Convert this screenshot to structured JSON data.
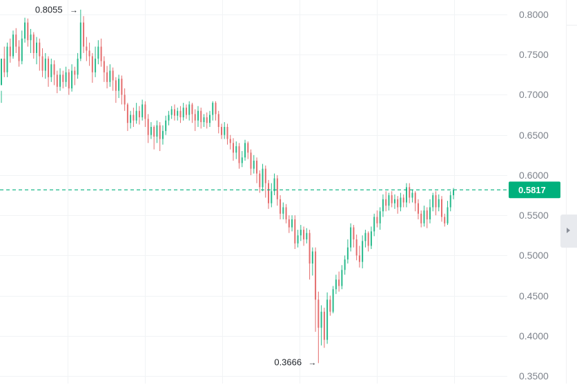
{
  "chart_data": {
    "type": "candlestick",
    "y_axis": {
      "ticks": [
        "0.8000",
        "0.7500",
        "0.7000",
        "0.6500",
        "0.6000",
        "0.5500",
        "0.5000",
        "0.4500",
        "0.4000",
        "0.3500"
      ],
      "ylim": [
        0.35,
        0.8
      ]
    },
    "grid": true,
    "current_price": {
      "value": 0.5817,
      "label": "0.5817",
      "color": "#00b07c"
    },
    "high_marker": {
      "value": 0.8055,
      "label": "0.8055"
    },
    "low_marker": {
      "value": 0.3666,
      "label": "0.3666"
    },
    "colors": {
      "up": "#26b98a",
      "down": "#e46c6c",
      "axis_text": "#7d828b",
      "grid": "#f1f3f5"
    },
    "candles": [
      [
        0.712,
        0.745,
        0.705,
        0.69
      ],
      [
        0.745,
        0.728,
        0.76,
        0.722
      ],
      [
        0.728,
        0.76,
        0.765,
        0.722
      ],
      [
        0.76,
        0.748,
        0.77,
        0.74
      ],
      [
        0.748,
        0.775,
        0.78,
        0.745
      ],
      [
        0.775,
        0.76,
        0.783,
        0.752
      ],
      [
        0.76,
        0.742,
        0.768,
        0.735
      ],
      [
        0.742,
        0.77,
        0.78,
        0.738
      ],
      [
        0.77,
        0.79,
        0.796,
        0.765
      ],
      [
        0.79,
        0.768,
        0.795,
        0.76
      ],
      [
        0.768,
        0.775,
        0.782,
        0.752
      ],
      [
        0.775,
        0.752,
        0.778,
        0.745
      ],
      [
        0.752,
        0.765,
        0.772,
        0.738
      ],
      [
        0.765,
        0.748,
        0.77,
        0.73
      ],
      [
        0.748,
        0.73,
        0.758,
        0.722
      ],
      [
        0.73,
        0.745,
        0.752,
        0.72
      ],
      [
        0.745,
        0.722,
        0.748,
        0.71
      ],
      [
        0.722,
        0.738,
        0.745,
        0.716
      ],
      [
        0.738,
        0.725,
        0.743,
        0.712
      ],
      [
        0.725,
        0.71,
        0.73,
        0.702
      ],
      [
        0.71,
        0.725,
        0.733,
        0.705
      ],
      [
        0.725,
        0.716,
        0.73,
        0.708
      ],
      [
        0.716,
        0.728,
        0.735,
        0.71
      ],
      [
        0.728,
        0.708,
        0.732,
        0.7
      ],
      [
        0.708,
        0.73,
        0.738,
        0.704
      ],
      [
        0.73,
        0.725,
        0.735,
        0.712
      ],
      [
        0.725,
        0.745,
        0.752,
        0.72
      ],
      [
        0.745,
        0.79,
        0.806,
        0.742
      ],
      [
        0.79,
        0.76,
        0.798,
        0.752
      ],
      [
        0.76,
        0.755,
        0.772,
        0.742
      ],
      [
        0.755,
        0.748,
        0.765,
        0.736
      ],
      [
        0.748,
        0.728,
        0.752,
        0.715
      ],
      [
        0.728,
        0.745,
        0.76,
        0.722
      ],
      [
        0.745,
        0.76,
        0.768,
        0.738
      ],
      [
        0.76,
        0.742,
        0.77,
        0.735
      ],
      [
        0.742,
        0.728,
        0.748,
        0.716
      ],
      [
        0.728,
        0.716,
        0.736,
        0.708
      ],
      [
        0.716,
        0.73,
        0.738,
        0.71
      ],
      [
        0.73,
        0.718,
        0.734,
        0.705
      ],
      [
        0.718,
        0.705,
        0.722,
        0.69
      ],
      [
        0.705,
        0.72,
        0.725,
        0.696
      ],
      [
        0.72,
        0.7,
        0.724,
        0.688
      ],
      [
        0.7,
        0.688,
        0.708,
        0.68
      ],
      [
        0.688,
        0.665,
        0.69,
        0.655
      ],
      [
        0.665,
        0.675,
        0.68,
        0.658
      ],
      [
        0.675,
        0.668,
        0.684,
        0.66
      ],
      [
        0.668,
        0.68,
        0.69,
        0.664
      ],
      [
        0.68,
        0.672,
        0.686,
        0.663
      ],
      [
        0.672,
        0.688,
        0.694,
        0.668
      ],
      [
        0.688,
        0.67,
        0.692,
        0.66
      ],
      [
        0.67,
        0.65,
        0.676,
        0.64
      ],
      [
        0.65,
        0.66,
        0.666,
        0.645
      ],
      [
        0.66,
        0.648,
        0.662,
        0.632
      ],
      [
        0.648,
        0.662,
        0.668,
        0.64
      ],
      [
        0.662,
        0.645,
        0.666,
        0.63
      ],
      [
        0.645,
        0.655,
        0.662,
        0.638
      ],
      [
        0.655,
        0.668,
        0.674,
        0.65
      ],
      [
        0.668,
        0.675,
        0.68,
        0.662
      ],
      [
        0.675,
        0.682,
        0.686,
        0.67
      ],
      [
        0.682,
        0.674,
        0.688,
        0.668
      ],
      [
        0.674,
        0.68,
        0.684,
        0.668
      ],
      [
        0.68,
        0.672,
        0.686,
        0.665
      ],
      [
        0.672,
        0.684,
        0.69,
        0.668
      ],
      [
        0.684,
        0.675,
        0.688,
        0.67
      ],
      [
        0.675,
        0.688,
        0.692,
        0.668
      ],
      [
        0.688,
        0.676,
        0.69,
        0.665
      ],
      [
        0.676,
        0.668,
        0.682,
        0.655
      ],
      [
        0.668,
        0.68,
        0.686,
        0.66
      ],
      [
        0.68,
        0.666,
        0.684,
        0.658
      ],
      [
        0.666,
        0.672,
        0.676,
        0.66
      ],
      [
        0.672,
        0.665,
        0.678,
        0.658
      ],
      [
        0.665,
        0.675,
        0.68,
        0.66
      ],
      [
        0.675,
        0.69,
        0.692,
        0.668
      ],
      [
        0.69,
        0.676,
        0.692,
        0.668
      ],
      [
        0.676,
        0.66,
        0.68,
        0.652
      ],
      [
        0.66,
        0.65,
        0.664,
        0.645
      ],
      [
        0.65,
        0.66,
        0.666,
        0.645
      ],
      [
        0.66,
        0.645,
        0.664,
        0.638
      ],
      [
        0.645,
        0.64,
        0.65,
        0.632
      ],
      [
        0.64,
        0.628,
        0.646,
        0.618
      ],
      [
        0.628,
        0.636,
        0.642,
        0.62
      ],
      [
        0.636,
        0.615,
        0.64,
        0.608
      ],
      [
        0.615,
        0.622,
        0.63,
        0.61
      ],
      [
        0.622,
        0.64,
        0.644,
        0.618
      ],
      [
        0.64,
        0.628,
        0.642,
        0.62
      ],
      [
        0.628,
        0.608,
        0.632,
        0.6
      ],
      [
        0.608,
        0.618,
        0.625,
        0.602
      ],
      [
        0.618,
        0.602,
        0.622,
        0.59
      ],
      [
        0.602,
        0.585,
        0.606,
        0.578
      ],
      [
        0.585,
        0.608,
        0.614,
        0.58
      ],
      [
        0.608,
        0.59,
        0.612,
        0.572
      ],
      [
        0.59,
        0.565,
        0.594,
        0.558
      ],
      [
        0.565,
        0.58,
        0.59,
        0.56
      ],
      [
        0.58,
        0.596,
        0.602,
        0.575
      ],
      [
        0.596,
        0.57,
        0.6,
        0.562
      ],
      [
        0.57,
        0.552,
        0.575,
        0.545
      ],
      [
        0.552,
        0.56,
        0.566,
        0.545
      ],
      [
        0.56,
        0.545,
        0.564,
        0.54
      ],
      [
        0.545,
        0.535,
        0.55,
        0.528
      ],
      [
        0.535,
        0.545,
        0.55,
        0.53
      ],
      [
        0.545,
        0.515,
        0.55,
        0.508
      ],
      [
        0.515,
        0.525,
        0.532,
        0.51
      ],
      [
        0.525,
        0.532,
        0.538,
        0.518
      ],
      [
        0.532,
        0.52,
        0.536,
        0.512
      ],
      [
        0.52,
        0.528,
        0.534,
        0.515
      ],
      [
        0.528,
        0.49,
        0.532,
        0.47
      ],
      [
        0.49,
        0.505,
        0.51,
        0.475
      ],
      [
        0.505,
        0.445,
        0.51,
        0.405
      ],
      [
        0.445,
        0.41,
        0.455,
        0.366
      ],
      [
        0.41,
        0.43,
        0.438,
        0.388
      ],
      [
        0.43,
        0.395,
        0.435,
        0.385
      ],
      [
        0.395,
        0.445,
        0.454,
        0.39
      ],
      [
        0.445,
        0.43,
        0.45,
        0.425
      ],
      [
        0.43,
        0.458,
        0.462,
        0.428
      ],
      [
        0.458,
        0.47,
        0.476,
        0.452
      ],
      [
        0.47,
        0.462,
        0.48,
        0.455
      ],
      [
        0.462,
        0.482,
        0.488,
        0.458
      ],
      [
        0.482,
        0.495,
        0.5,
        0.476
      ],
      [
        0.495,
        0.51,
        0.52,
        0.49
      ],
      [
        0.51,
        0.535,
        0.54,
        0.505
      ],
      [
        0.535,
        0.52,
        0.538,
        0.51
      ],
      [
        0.52,
        0.5,
        0.526,
        0.494
      ],
      [
        0.5,
        0.492,
        0.512,
        0.485
      ],
      [
        0.492,
        0.518,
        0.525,
        0.484
      ],
      [
        0.518,
        0.528,
        0.532,
        0.51
      ],
      [
        0.528,
        0.512,
        0.53,
        0.505
      ],
      [
        0.512,
        0.53,
        0.536,
        0.508
      ],
      [
        0.53,
        0.548,
        0.552,
        0.524
      ],
      [
        0.548,
        0.54,
        0.556,
        0.535
      ],
      [
        0.54,
        0.555,
        0.56,
        0.532
      ],
      [
        0.555,
        0.57,
        0.576,
        0.548
      ],
      [
        0.57,
        0.562,
        0.58,
        0.555
      ],
      [
        0.562,
        0.575,
        0.578,
        0.556
      ],
      [
        0.575,
        0.565,
        0.58,
        0.56
      ],
      [
        0.565,
        0.57,
        0.576,
        0.558
      ],
      [
        0.57,
        0.56,
        0.574,
        0.552
      ],
      [
        0.56,
        0.572,
        0.578,
        0.555
      ],
      [
        0.572,
        0.566,
        0.576,
        0.56
      ],
      [
        0.566,
        0.585,
        0.59,
        0.56
      ],
      [
        0.585,
        0.572,
        0.59,
        0.565
      ],
      [
        0.572,
        0.578,
        0.582,
        0.566
      ],
      [
        0.578,
        0.565,
        0.58,
        0.555
      ],
      [
        0.565,
        0.552,
        0.57,
        0.545
      ],
      [
        0.552,
        0.54,
        0.556,
        0.535
      ],
      [
        0.54,
        0.556,
        0.562,
        0.536
      ],
      [
        0.556,
        0.545,
        0.56,
        0.534
      ],
      [
        0.545,
        0.56,
        0.57,
        0.54
      ],
      [
        0.56,
        0.575,
        0.578,
        0.555
      ],
      [
        0.575,
        0.56,
        0.58,
        0.55
      ],
      [
        0.56,
        0.57,
        0.576,
        0.555
      ],
      [
        0.57,
        0.548,
        0.574,
        0.542
      ],
      [
        0.548,
        0.54,
        0.552,
        0.536
      ],
      [
        0.54,
        0.56,
        0.568,
        0.538
      ],
      [
        0.56,
        0.575,
        0.58,
        0.555
      ],
      [
        0.575,
        0.5817,
        0.584,
        0.57
      ]
    ]
  }
}
